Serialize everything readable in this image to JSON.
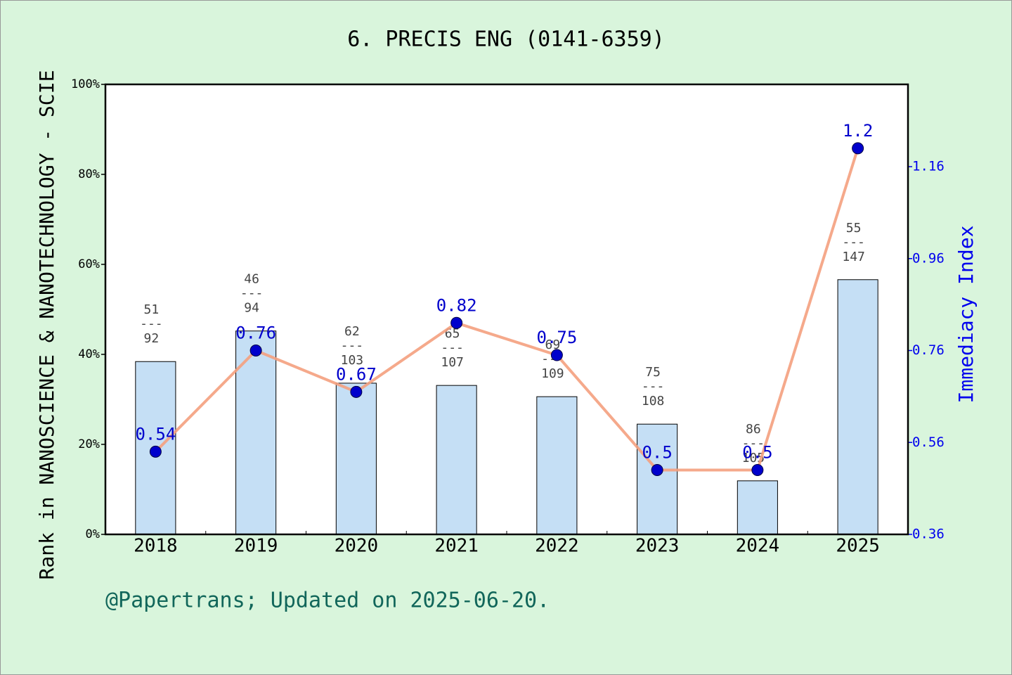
{
  "chart_data": {
    "type": "bar",
    "title": "6. PRECIS ENG (0141-6359)",
    "y_label": "Rank in NANOSCIENCE & NANOTECHNOLOGY - SCIE",
    "y2_label": "Immediacy Index",
    "footer": "@Papertrans; Updated on 2025-06-20.",
    "categories": [
      "2018",
      "2019",
      "2020",
      "2021",
      "2022",
      "2023",
      "2024",
      "2025"
    ],
    "series": [
      {
        "type": "bar",
        "color": "#c5dff5",
        "values": [
          38.4,
          45.2,
          33.6,
          33.1,
          30.6,
          24.5,
          11.9,
          56.6
        ]
      },
      {
        "type": "line",
        "axis": "y2",
        "color": "#f4a07e",
        "marker_color": "#0000cc",
        "values": [
          0.54,
          0.76,
          0.67,
          0.82,
          0.75,
          0.5,
          0.5,
          1.2
        ]
      }
    ],
    "ranks": [
      51,
      46,
      62,
      65,
      69,
      75,
      86,
      55
    ],
    "totals": [
      92,
      94,
      103,
      107,
      109,
      108,
      105,
      147
    ],
    "rank_separator": "---",
    "ylim": [
      0,
      100
    ],
    "yticks": [
      {
        "value": 0,
        "label": "0%"
      },
      {
        "value": 20,
        "label": "20%"
      },
      {
        "value": 40,
        "label": "40%"
      },
      {
        "value": 60,
        "label": "60%"
      },
      {
        "value": 80,
        "label": "80%"
      },
      {
        "value": 100,
        "label": "100%"
      }
    ],
    "y2lim": [
      0.36,
      1.339
    ],
    "y2ticks": [
      0.36,
      0.56,
      0.76,
      0.96,
      1.16
    ]
  }
}
